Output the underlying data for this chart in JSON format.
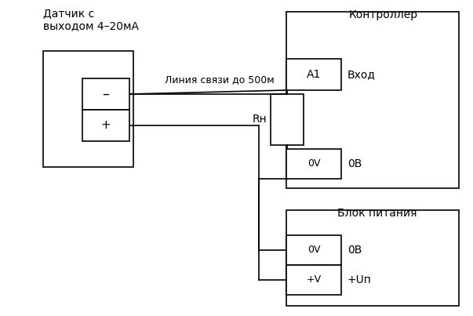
{
  "bg_color": "#ffffff",
  "line_color": "#000000",
  "title_sensor": "Датчик с\nвыходом 4–20мА",
  "title_controller": "Контроллер",
  "title_power": "Блок питания",
  "label_line": "Линия связи до 500м",
  "label_minus": "–",
  "label_plus": "+",
  "label_A1": "А1",
  "label_vhod": "Вход",
  "label_Rn": "Rн",
  "label_0V_ctrl": "0V",
  "label_0B_ctrl": "0В",
  "label_0V_pwr": "0V",
  "label_0B_pwr": "0В",
  "label_pV": "+V",
  "label_pUp": "+Uп"
}
